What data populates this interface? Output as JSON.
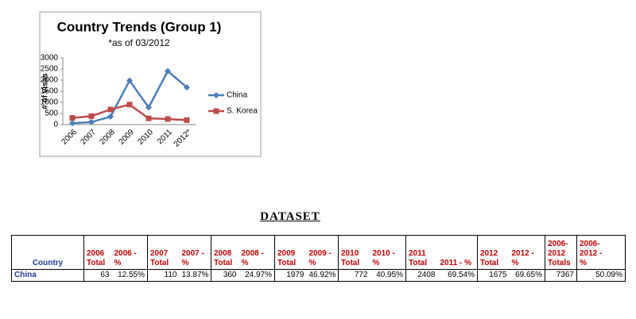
{
  "chart_data": {
    "type": "line",
    "title": "Country Trends (Group 1)",
    "subtitle": "*as of 03/2012",
    "y_label": "# of visas",
    "categories": [
      "2006",
      "2007",
      "2008",
      "2009",
      "2010",
      "2011",
      "2012*"
    ],
    "series": [
      {
        "name": "China",
        "color": "#4a7ebb",
        "marker": "diamond",
        "values": [
          63,
          110,
          360,
          1979,
          772,
          2408,
          1675
        ]
      },
      {
        "name": "S. Korea",
        "color": "#be4b48",
        "marker": "square",
        "values": [
          300,
          380,
          680,
          900,
          280,
          250,
          200
        ]
      }
    ],
    "ylim": [
      0,
      3000
    ],
    "yticks": [
      0,
      500,
      1000,
      1500,
      2000,
      2500,
      3000
    ],
    "grid": false,
    "legend": "right"
  },
  "table": {
    "title": "DATASET",
    "header": [
      "Country",
      "2006\nTotal",
      "2006 -\n%",
      "2007\nTotal",
      "2007 -\n%",
      "2008\nTotal",
      "2008 -\n%",
      "2009\nTotal",
      "2009 -\n%",
      "2010\nTotal",
      "2010 -\n%",
      "2011\nTotal",
      "2011 - %",
      "2012\nTotal",
      "2012 -\n%",
      "2006-\n2012\nTotals",
      "2006-\n2012 -\n%"
    ],
    "rows": [
      [
        "China",
        "63",
        "12.55%",
        "110",
        "13.87%",
        "360",
        "24.97%",
        "1979",
        "46.92%",
        "772",
        "40.95%",
        "2408",
        "69.54%",
        "1675",
        "69.65%",
        "7367",
        "50.09%"
      ]
    ]
  }
}
